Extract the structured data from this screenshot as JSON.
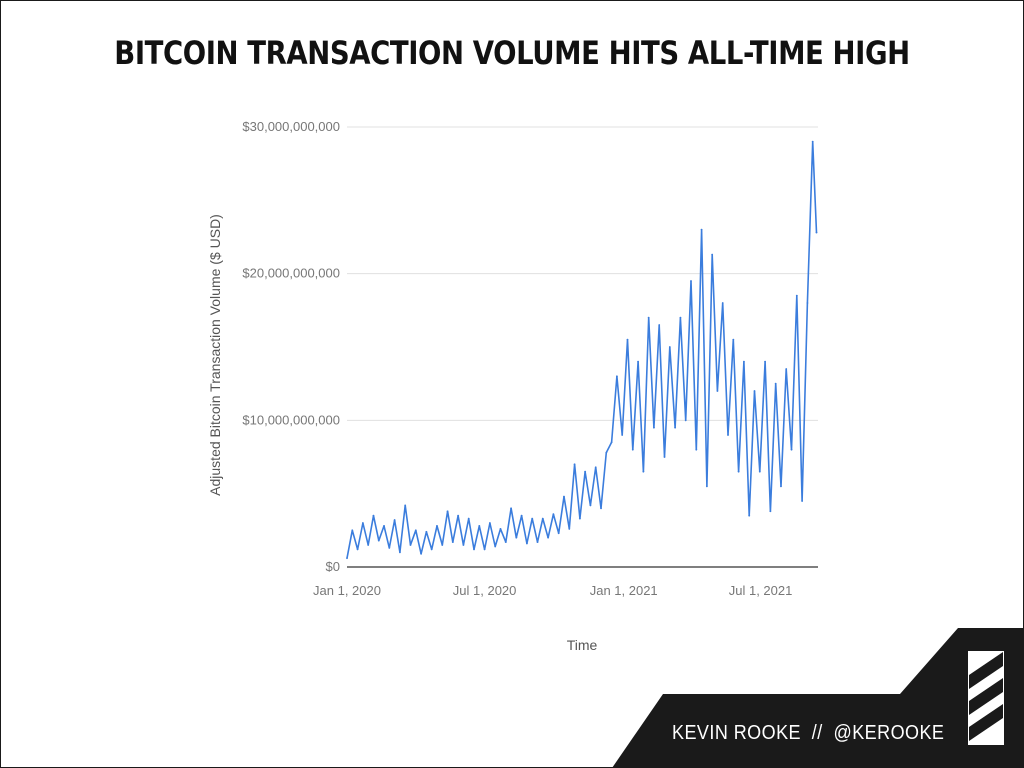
{
  "title": "BITCOIN TRANSACTION VOLUME HITS ALL-TIME HIGH",
  "credit": {
    "name": "KEVIN ROOKE",
    "separator": "//",
    "handle": "@KEROOKE"
  },
  "colors": {
    "line": "#3b7ddd",
    "grid": "#e0e0e0",
    "footer": "#1a1a1a"
  },
  "chart_data": {
    "type": "line",
    "title": "BITCOIN TRANSACTION VOLUME HITS ALL-TIME HIGH",
    "xlabel": "Time",
    "ylabel": "Adjusted Bitcoin Transaction Volume ($ USD)",
    "ylim": [
      0,
      30000000000
    ],
    "xlim": [
      "2020-01-01",
      "2021-09-15"
    ],
    "y_ticks": [
      {
        "value": 0,
        "label": "$0"
      },
      {
        "value": 10000000000,
        "label": "$10,000,000,000"
      },
      {
        "value": 20000000000,
        "label": "$20,000,000,000"
      },
      {
        "value": 30000000000,
        "label": "$30,000,000,000"
      }
    ],
    "x_ticks": [
      {
        "value": "2020-01-01",
        "label": "Jan 1, 2020"
      },
      {
        "value": "2020-07-01",
        "label": "Jul 1, 2020"
      },
      {
        "value": "2021-01-01",
        "label": "Jan 1, 2021"
      },
      {
        "value": "2021-07-01",
        "label": "Jul 1, 2021"
      }
    ],
    "grid": true,
    "legend": "none",
    "series": [
      {
        "x": [
          "2020-01-01",
          "2020-01-08",
          "2020-01-15",
          "2020-01-22",
          "2020-01-29",
          "2020-02-05",
          "2020-02-12",
          "2020-02-19",
          "2020-02-26",
          "2020-03-04",
          "2020-03-11",
          "2020-03-18",
          "2020-03-25",
          "2020-04-01",
          "2020-04-08",
          "2020-04-15",
          "2020-04-22",
          "2020-04-29",
          "2020-05-06",
          "2020-05-13",
          "2020-05-20",
          "2020-05-27",
          "2020-06-03",
          "2020-06-10",
          "2020-06-17",
          "2020-06-24",
          "2020-07-01",
          "2020-07-08",
          "2020-07-15",
          "2020-07-22",
          "2020-07-29",
          "2020-08-05",
          "2020-08-12",
          "2020-08-19",
          "2020-08-26",
          "2020-09-02",
          "2020-09-09",
          "2020-09-16",
          "2020-09-23",
          "2020-09-30",
          "2020-10-07",
          "2020-10-14",
          "2020-10-21",
          "2020-10-28",
          "2020-11-04",
          "2020-11-11",
          "2020-11-18",
          "2020-11-25",
          "2020-12-02",
          "2020-12-09",
          "2020-12-16",
          "2020-12-23",
          "2020-12-30",
          "2021-01-06",
          "2021-01-13",
          "2021-01-20",
          "2021-01-27",
          "2021-02-03",
          "2021-02-10",
          "2021-02-17",
          "2021-02-24",
          "2021-03-03",
          "2021-03-10",
          "2021-03-17",
          "2021-03-24",
          "2021-03-31",
          "2021-04-07",
          "2021-04-14",
          "2021-04-21",
          "2021-04-28",
          "2021-05-05",
          "2021-05-12",
          "2021-05-19",
          "2021-05-26",
          "2021-06-02",
          "2021-06-09",
          "2021-06-16",
          "2021-06-23",
          "2021-06-30",
          "2021-07-07",
          "2021-07-14",
          "2021-07-21",
          "2021-07-28",
          "2021-08-04",
          "2021-08-11",
          "2021-08-18",
          "2021-08-25",
          "2021-09-01",
          "2021-09-08",
          "2021-09-13"
        ],
        "values": [
          600000000,
          2500000000,
          1200000000,
          3000000000,
          1500000000,
          3500000000,
          1800000000,
          2800000000,
          1300000000,
          3200000000,
          1000000000,
          4200000000,
          1500000000,
          2500000000,
          900000000,
          2400000000,
          1200000000,
          2800000000,
          1500000000,
          3800000000,
          1700000000,
          3500000000,
          1500000000,
          3300000000,
          1200000000,
          2800000000,
          1200000000,
          3000000000,
          1400000000,
          2600000000,
          1700000000,
          4000000000,
          2000000000,
          3500000000,
          1600000000,
          3300000000,
          1700000000,
          3300000000,
          2000000000,
          3600000000,
          2300000000,
          4800000000,
          2600000000,
          7000000000,
          3300000000,
          6500000000,
          4200000000,
          6800000000,
          4000000000,
          7800000000,
          8500000000,
          13000000000,
          9000000000,
          15500000000,
          8000000000,
          14000000000,
          6500000000,
          17000000000,
          9500000000,
          16500000000,
          7500000000,
          15000000000,
          9500000000,
          17000000000,
          10000000000,
          19500000000,
          8000000000,
          23000000000,
          5500000000,
          21300000000,
          12000000000,
          18000000000,
          9000000000,
          15500000000,
          6500000000,
          14000000000,
          3500000000,
          12000000000,
          6500000000,
          14000000000,
          3800000000,
          12500000000,
          5500000000,
          13500000000,
          8000000000,
          18500000000,
          4500000000,
          18000000000,
          29000000000,
          22800000000
        ]
      }
    ]
  }
}
